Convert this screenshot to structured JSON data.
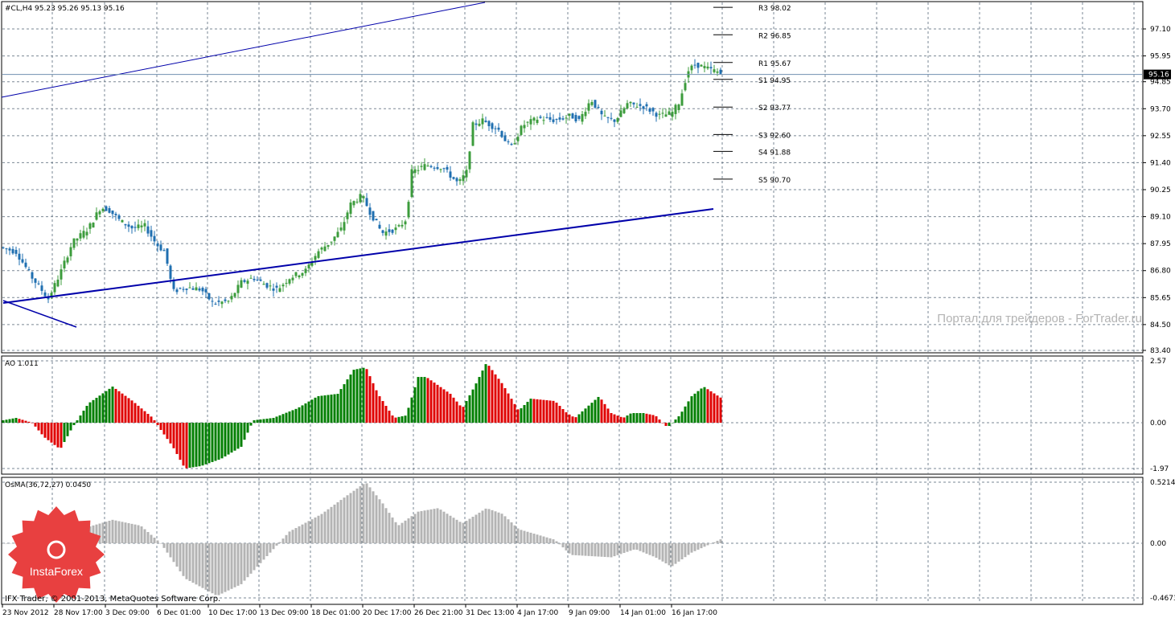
{
  "main_panel": {
    "header": "#CL,H4  95.23 95.26 95.13 95.16",
    "price_ticks": [
      "97.10",
      "95.95",
      "94.85",
      "93.70",
      "92.55",
      "91.40",
      "90.25",
      "89.10",
      "87.95",
      "86.80",
      "85.65",
      "84.50",
      "83.40"
    ],
    "current_price": "95.16",
    "pivots": [
      {
        "label": "R3 98.02",
        "value": 98.02
      },
      {
        "label": "R2 96.85",
        "value": 96.85
      },
      {
        "label": "R1 95.67",
        "value": 95.67
      },
      {
        "label": "S1 94.95",
        "value": 94.95
      },
      {
        "label": "S2 93.77",
        "value": 93.77
      },
      {
        "label": "S3 92.60",
        "value": 92.6
      },
      {
        "label": "S4 91.88",
        "value": 91.88
      },
      {
        "label": "S5 90.70",
        "value": 90.7
      }
    ],
    "watermark": "Портал для трейдеров - ForTrader.ru",
    "copyright": "IFX Trader, © 2001-2013, MetaQuotes Software Corp."
  },
  "ao_panel": {
    "header": "AO 1.011",
    "ticks": [
      "2.57",
      "0.00",
      "-1.97"
    ]
  },
  "osma_panel": {
    "header": "OsMA(36,72,27) 0.0450",
    "ticks": [
      "0.5214",
      "0.00",
      "-0.4673"
    ]
  },
  "time_axis": [
    "23 Nov 2012",
    "28 Nov 17:00",
    "3 Dec 09:00",
    "6 Dec 01:00",
    "10 Dec 17:00",
    "13 Dec 09:00",
    "18 Dec 01:00",
    "20 Dec 17:00",
    "26 Dec 21:00",
    "31 Dec 13:00",
    "4 Jan 17:00",
    "9 Jan 09:00",
    "14 Jan 01:00",
    "16 Jan 17:00"
  ],
  "logo": {
    "text": "InstaForex",
    "color": "#e84040"
  },
  "colors": {
    "up": "#3c9c3c",
    "down": "#1f6fb0",
    "trend": "#0000aa",
    "ao_up": "#007f00",
    "ao_down": "#e00000",
    "osma": "#b4b4b4",
    "grid": "#5a6a7a"
  }
}
